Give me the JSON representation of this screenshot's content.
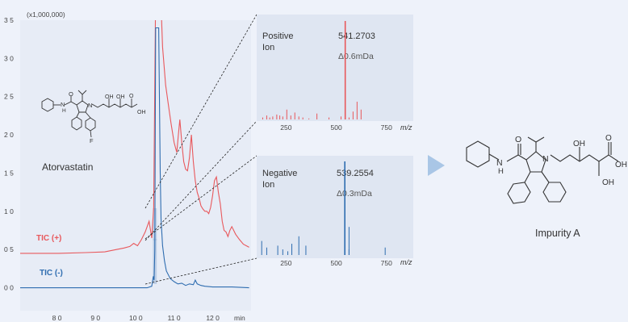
{
  "chart_data": [
    {
      "type": "line",
      "ylabel": "(x1,000,000)",
      "xunit": "min",
      "x_ticks": [
        "8 0",
        "9 0",
        "10 0",
        "11 0",
        "12 0"
      ],
      "y_ticks": [
        "0 0",
        "0 5",
        "1 0",
        "1 5",
        "2 0",
        "2 5",
        "3 0",
        "3 5"
      ],
      "xlim": [
        7.0,
        13.0
      ],
      "ylim": [
        -0.3,
        3.5
      ],
      "series": [
        {
          "name": "TIC (+)",
          "color": "#e8585c",
          "offset": 0.45,
          "x": [
            7.0,
            8.0,
            8.7,
            9.2,
            9.5,
            9.7,
            9.85,
            9.95,
            10.05,
            10.15,
            10.25,
            10.35,
            10.42,
            10.47,
            10.52,
            10.55,
            10.6,
            10.65,
            10.7,
            10.78,
            10.85,
            10.92,
            11.0,
            11.07,
            11.12,
            11.15,
            11.2,
            11.25,
            11.3,
            11.35,
            11.4,
            11.45,
            11.5,
            11.55,
            11.6,
            11.65,
            11.7,
            11.75,
            11.8,
            11.85,
            11.9,
            11.95,
            12.0,
            12.05,
            12.1,
            12.15,
            12.2,
            12.25,
            12.3,
            12.35,
            12.4,
            12.45,
            12.5,
            12.6,
            12.7,
            12.8,
            12.95
          ],
          "y": [
            0.0,
            0.0,
            0.01,
            0.02,
            0.05,
            0.07,
            0.09,
            0.13,
            0.1,
            0.18,
            0.28,
            0.42,
            0.2,
            0.6,
            3.4,
            3.4,
            3.4,
            3.4,
            2.7,
            2.2,
            1.95,
            1.7,
            1.45,
            1.32,
            1.6,
            1.75,
            1.45,
            1.2,
            1.1,
            1.08,
            1.25,
            1.55,
            1.2,
            0.95,
            0.8,
            0.72,
            0.62,
            0.58,
            0.55,
            0.55,
            0.52,
            0.6,
            0.75,
            0.95,
            1.0,
            0.8,
            0.65,
            0.42,
            0.3,
            0.28,
            0.22,
            0.3,
            0.35,
            0.25,
            0.18,
            0.12,
            0.08
          ]
        },
        {
          "name": "TIC (-)",
          "color": "#2f6db0",
          "offset": 0.0,
          "x": [
            7.0,
            8.0,
            9.0,
            10.0,
            10.3,
            10.42,
            10.46,
            10.48,
            10.5,
            10.52,
            10.54,
            10.56,
            10.58,
            10.6,
            10.62,
            10.64,
            10.66,
            10.7,
            10.75,
            10.8,
            10.9,
            11.0,
            11.1,
            11.2,
            11.3,
            11.4,
            11.5,
            11.55,
            11.6,
            11.7,
            11.8,
            12.0,
            12.5,
            12.95
          ],
          "y": [
            0.0,
            0.0,
            0.0,
            0.0,
            0.0,
            0.02,
            0.15,
            0.1,
            0.5,
            3.4,
            3.4,
            3.4,
            3.4,
            3.4,
            2.4,
            1.5,
            0.9,
            0.55,
            0.35,
            0.22,
            0.12,
            0.08,
            0.05,
            0.06,
            0.03,
            0.05,
            0.04,
            0.1,
            0.05,
            0.03,
            0.02,
            0.01,
            0.01,
            0.0
          ]
        }
      ],
      "zoom_regions": [
        {
          "name": "TIC (+)",
          "x": [
            10.45,
            10.55
          ]
        },
        {
          "name": "TIC (-)",
          "x": [
            10.45,
            10.55
          ]
        }
      ]
    },
    {
      "type": "bar",
      "title": "Positive Ion",
      "label_line1": "Positive",
      "label_line2": "Ion",
      "mass": "541.2703",
      "error": "Δ0.6mDa",
      "color": "#e8585c",
      "xlabel": "m/z",
      "x_ticks": [
        "250",
        "500",
        "750"
      ],
      "xlim": [
        100,
        880
      ],
      "ylim": [
        0,
        100
      ],
      "x": [
        130,
        150,
        165,
        180,
        200,
        215,
        230,
        250,
        270,
        290,
        310,
        330,
        360,
        400,
        460,
        520,
        541,
        560,
        580,
        600,
        620
      ],
      "y": [
        2,
        4,
        2,
        3,
        5,
        4,
        3,
        10,
        4,
        7,
        3,
        2,
        1,
        6,
        2,
        3,
        100,
        2,
        8,
        18,
        10
      ]
    },
    {
      "type": "bar",
      "title": "Negative Ion",
      "label_line1": "Negative",
      "label_line2": "Ion",
      "mass": "539.2554",
      "error": "Δ0.3mDa",
      "color": "#2f6db0",
      "xlabel": "m/z",
      "x_ticks": [
        "250",
        "500",
        "750"
      ],
      "xlim": [
        100,
        880
      ],
      "ylim": [
        0,
        100
      ],
      "x": [
        125,
        150,
        205,
        230,
        255,
        275,
        310,
        345,
        539,
        560,
        560,
        740
      ],
      "y": [
        15,
        8,
        10,
        6,
        4,
        12,
        20,
        10,
        100,
        6,
        30,
        8
      ]
    }
  ],
  "labels": {
    "compound1": "Atorvastatin",
    "compound2": "Impurity A",
    "oh1": "OH",
    "oh2": "OH",
    "oh3": "OH",
    "nh": "N",
    "h": "H",
    "n_ring": "N",
    "o_amide": "O",
    "o_acid": "O",
    "f": "F"
  }
}
